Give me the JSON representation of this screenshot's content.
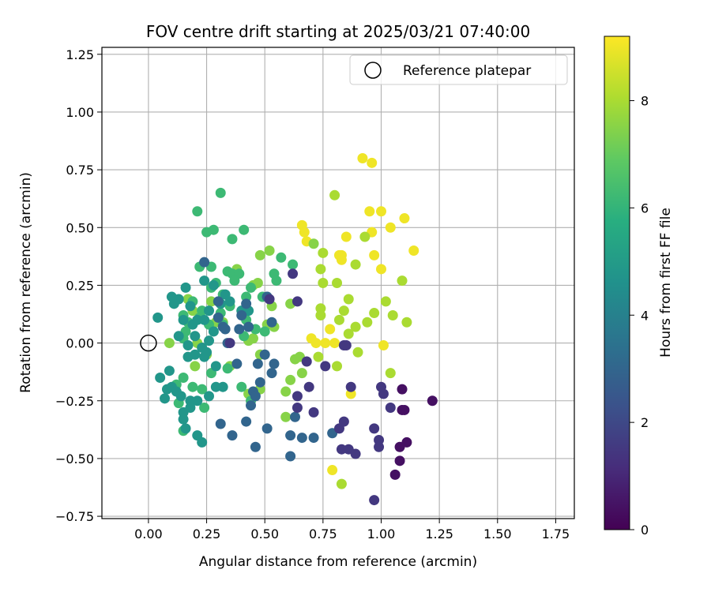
{
  "chart_data": {
    "type": "scatter",
    "title": "FOV centre drift starting at 2025/03/21 07:40:00",
    "xlabel": "Angular distance from reference (arcmin)",
    "ylabel": "Rotation from reference (arcmin)",
    "xlim": [
      -0.2,
      1.83
    ],
    "ylim": [
      -0.76,
      1.28
    ],
    "x_ticks": [
      0.0,
      0.25,
      0.5,
      0.75,
      1.0,
      1.25,
      1.5,
      1.75
    ],
    "x_tick_labels": [
      "0.00",
      "0.25",
      "0.50",
      "0.75",
      "1.00",
      "1.25",
      "1.50",
      "1.75"
    ],
    "y_ticks": [
      -0.75,
      -0.5,
      -0.25,
      0.0,
      0.25,
      0.5,
      0.75,
      1.0,
      1.25
    ],
    "y_tick_labels": [
      "−0.75",
      "−0.50",
      "−0.25",
      "0.00",
      "0.25",
      "0.50",
      "0.75",
      "1.00",
      "1.25"
    ],
    "grid": true,
    "legend": {
      "position": "top-right",
      "entries": [
        "Reference platepar"
      ]
    },
    "reference_point": {
      "x": 0.0,
      "y": 0.0
    },
    "colorbar": {
      "label": "Hours from first FF file",
      "colormap": "viridis",
      "range": [
        0,
        9.2
      ],
      "ticks": [
        0,
        2,
        4,
        6,
        8
      ],
      "tick_labels": [
        "0",
        "2",
        "4",
        "6",
        "8"
      ]
    },
    "points": [
      [
        0.92,
        0.8,
        9.0
      ],
      [
        0.96,
        0.78,
        9.0
      ],
      [
        0.95,
        0.57,
        9.0
      ],
      [
        1.0,
        0.57,
        9.0
      ],
      [
        0.66,
        0.51,
        9.0
      ],
      [
        0.67,
        0.48,
        9.0
      ],
      [
        0.68,
        0.44,
        9.0
      ],
      [
        0.85,
        0.46,
        9.0
      ],
      [
        0.96,
        0.48,
        9.0
      ],
      [
        1.04,
        0.5,
        9.0
      ],
      [
        1.1,
        0.54,
        9.0
      ],
      [
        1.14,
        0.4,
        9.0
      ],
      [
        0.97,
        0.38,
        9.0
      ],
      [
        1.0,
        0.32,
        9.0
      ],
      [
        0.83,
        0.38,
        9.0
      ],
      [
        0.82,
        0.38,
        9.0
      ],
      [
        0.83,
        0.36,
        9.0
      ],
      [
        0.76,
        0.0,
        9.0
      ],
      [
        0.8,
        0.0,
        9.0
      ],
      [
        0.78,
        0.06,
        9.0
      ],
      [
        0.7,
        0.02,
        9.0
      ],
      [
        0.72,
        0.0,
        9.0
      ],
      [
        1.01,
        -0.01,
        9.0
      ],
      [
        0.87,
        -0.22,
        9.0
      ],
      [
        0.79,
        -0.55,
        9.0
      ],
      [
        0.8,
        0.64,
        8.0
      ],
      [
        0.93,
        0.46,
        8.0
      ],
      [
        0.75,
        0.39,
        8.0
      ],
      [
        0.74,
        0.32,
        8.0
      ],
      [
        0.75,
        0.26,
        8.0
      ],
      [
        0.81,
        0.26,
        8.0
      ],
      [
        0.86,
        0.19,
        8.0
      ],
      [
        0.89,
        0.34,
        8.0
      ],
      [
        0.74,
        0.15,
        8.0
      ],
      [
        0.74,
        0.12,
        8.0
      ],
      [
        0.84,
        0.14,
        8.0
      ],
      [
        0.82,
        0.1,
        8.0
      ],
      [
        0.86,
        0.04,
        8.0
      ],
      [
        0.89,
        0.07,
        8.0
      ],
      [
        0.94,
        0.09,
        8.0
      ],
      [
        0.97,
        0.13,
        8.0
      ],
      [
        1.02,
        0.18,
        8.0
      ],
      [
        1.05,
        0.12,
        8.0
      ],
      [
        1.09,
        0.27,
        8.0
      ],
      [
        1.11,
        0.09,
        8.0
      ],
      [
        0.9,
        -0.04,
        8.0
      ],
      [
        0.81,
        -0.1,
        8.0
      ],
      [
        1.04,
        -0.13,
        8.0
      ],
      [
        0.83,
        -0.61,
        8.0
      ],
      [
        0.73,
        -0.06,
        8.0
      ],
      [
        0.59,
        -0.21,
        7.5
      ],
      [
        0.61,
        -0.16,
        7.5
      ],
      [
        0.63,
        -0.07,
        7.5
      ],
      [
        0.65,
        -0.06,
        7.5
      ],
      [
        0.66,
        -0.13,
        7.5
      ],
      [
        0.59,
        -0.32,
        7.5
      ],
      [
        0.48,
        -0.2,
        7.5
      ],
      [
        0.43,
        -0.22,
        7.5
      ],
      [
        0.43,
        0.01,
        7.5
      ],
      [
        0.45,
        0.02,
        7.5
      ],
      [
        0.48,
        -0.05,
        7.5
      ],
      [
        0.51,
        0.08,
        7.5
      ],
      [
        0.53,
        0.16,
        7.5
      ],
      [
        0.54,
        0.07,
        7.5
      ],
      [
        0.47,
        0.26,
        7.5
      ],
      [
        0.45,
        0.25,
        7.5
      ],
      [
        0.48,
        0.38,
        7.5
      ],
      [
        0.52,
        0.4,
        7.5
      ],
      [
        0.71,
        0.43,
        7.5
      ],
      [
        0.61,
        0.17,
        7.5
      ],
      [
        0.38,
        0.32,
        7.5
      ],
      [
        0.35,
        -0.1,
        7.5
      ],
      [
        0.25,
        -0.05,
        7.5
      ],
      [
        0.2,
        -0.1,
        7.5
      ],
      [
        0.21,
        0.0,
        7.5
      ],
      [
        0.17,
        0.19,
        7.5
      ],
      [
        0.09,
        0.0,
        7.5
      ],
      [
        0.19,
        0.14,
        7.5
      ],
      [
        0.27,
        0.18,
        7.5
      ],
      [
        0.29,
        0.09,
        7.5
      ],
      [
        0.32,
        0.09,
        7.5
      ],
      [
        0.21,
        0.57,
        6.2
      ],
      [
        0.28,
        0.49,
        6.2
      ],
      [
        0.31,
        0.65,
        6.2
      ],
      [
        0.41,
        0.49,
        6.2
      ],
      [
        0.36,
        0.45,
        6.2
      ],
      [
        0.25,
        0.48,
        6.2
      ],
      [
        0.22,
        0.33,
        6.2
      ],
      [
        0.27,
        0.33,
        6.2
      ],
      [
        0.34,
        0.31,
        6.2
      ],
      [
        0.36,
        0.3,
        6.2
      ],
      [
        0.39,
        0.3,
        6.2
      ],
      [
        0.44,
        0.24,
        6.2
      ],
      [
        0.54,
        0.3,
        6.2
      ],
      [
        0.57,
        0.37,
        6.2
      ],
      [
        0.62,
        0.34,
        6.2
      ],
      [
        0.55,
        0.27,
        6.2
      ],
      [
        0.49,
        0.2,
        6.2
      ],
      [
        0.27,
        0.24,
        6.2
      ],
      [
        0.19,
        0.18,
        6.2
      ],
      [
        0.23,
        0.14,
        6.2
      ],
      [
        0.15,
        0.12,
        6.2
      ],
      [
        0.22,
        0.11,
        6.2
      ],
      [
        0.26,
        0.08,
        6.2
      ],
      [
        0.31,
        0.13,
        6.2
      ],
      [
        0.32,
        0.08,
        6.2
      ],
      [
        0.42,
        0.1,
        6.2
      ],
      [
        0.46,
        0.06,
        6.2
      ],
      [
        0.5,
        0.05,
        6.2
      ],
      [
        0.41,
        0.03,
        6.2
      ],
      [
        0.12,
        -0.18,
        6.2
      ],
      [
        0.15,
        -0.15,
        6.2
      ],
      [
        0.19,
        -0.19,
        6.2
      ],
      [
        0.23,
        -0.2,
        6.2
      ],
      [
        0.24,
        -0.28,
        6.2
      ],
      [
        0.13,
        -0.26,
        6.2
      ],
      [
        0.15,
        -0.38,
        6.2
      ],
      [
        0.27,
        -0.13,
        6.2
      ],
      [
        0.34,
        -0.11,
        6.2
      ],
      [
        0.4,
        -0.19,
        6.2
      ],
      [
        0.44,
        -0.25,
        6.2
      ],
      [
        0.15,
        0.02,
        6.2
      ],
      [
        0.17,
        0.09,
        6.2
      ],
      [
        0.35,
        0.16,
        6.2
      ],
      [
        0.32,
        0.21,
        6.2
      ],
      [
        0.29,
        0.26,
        6.2
      ],
      [
        0.37,
        0.27,
        6.2
      ],
      [
        0.42,
        0.2,
        6.2
      ],
      [
        0.16,
        0.05,
        6.2
      ],
      [
        0.04,
        0.11,
        4.8
      ],
      [
        0.1,
        0.2,
        4.8
      ],
      [
        0.16,
        0.24,
        4.8
      ],
      [
        0.13,
        0.19,
        4.8
      ],
      [
        0.11,
        0.17,
        4.8
      ],
      [
        0.18,
        0.16,
        4.8
      ],
      [
        0.15,
        0.1,
        4.8
      ],
      [
        0.19,
        0.08,
        4.8
      ],
      [
        0.2,
        0.03,
        4.8
      ],
      [
        0.17,
        -0.01,
        4.8
      ],
      [
        0.23,
        -0.02,
        4.8
      ],
      [
        0.26,
        0.01,
        4.8
      ],
      [
        0.24,
        -0.06,
        4.8
      ],
      [
        0.17,
        -0.06,
        4.8
      ],
      [
        0.09,
        -0.12,
        4.8
      ],
      [
        0.05,
        -0.15,
        4.8
      ],
      [
        0.08,
        -0.2,
        4.8
      ],
      [
        0.1,
        -0.19,
        4.8
      ],
      [
        0.12,
        -0.21,
        4.8
      ],
      [
        0.14,
        -0.23,
        4.8
      ],
      [
        0.18,
        -0.25,
        4.8
      ],
      [
        0.07,
        -0.24,
        4.8
      ],
      [
        0.15,
        -0.3,
        4.8
      ],
      [
        0.18,
        -0.28,
        4.8
      ],
      [
        0.21,
        -0.25,
        4.8
      ],
      [
        0.15,
        -0.33,
        4.8
      ],
      [
        0.16,
        -0.37,
        4.8
      ],
      [
        0.21,
        -0.4,
        4.8
      ],
      [
        0.23,
        -0.43,
        4.8
      ],
      [
        0.26,
        -0.23,
        4.8
      ],
      [
        0.29,
        -0.19,
        4.8
      ],
      [
        0.32,
        -0.19,
        4.8
      ],
      [
        0.29,
        -0.1,
        4.8
      ],
      [
        0.25,
        -0.04,
        4.8
      ],
      [
        0.28,
        0.05,
        4.8
      ],
      [
        0.24,
        0.1,
        4.8
      ],
      [
        0.26,
        0.14,
        4.8
      ],
      [
        0.31,
        0.17,
        4.8
      ],
      [
        0.33,
        0.21,
        4.8
      ],
      [
        0.35,
        0.18,
        4.8
      ],
      [
        0.4,
        0.14,
        4.8
      ],
      [
        0.43,
        0.14,
        4.8
      ],
      [
        0.24,
        0.27,
        4.8
      ],
      [
        0.28,
        0.25,
        4.8
      ],
      [
        0.21,
        0.1,
        4.8
      ],
      [
        0.13,
        0.03,
        4.8
      ],
      [
        0.2,
        -0.05,
        4.8
      ],
      [
        0.24,
        0.35,
        3.0
      ],
      [
        0.3,
        0.18,
        3.0
      ],
      [
        0.3,
        0.11,
        3.0
      ],
      [
        0.32,
        0.07,
        3.0
      ],
      [
        0.33,
        0.06,
        3.0
      ],
      [
        0.39,
        0.06,
        3.0
      ],
      [
        0.43,
        0.07,
        3.0
      ],
      [
        0.38,
        -0.09,
        3.0
      ],
      [
        0.47,
        -0.09,
        3.0
      ],
      [
        0.5,
        -0.05,
        3.0
      ],
      [
        0.54,
        -0.09,
        3.0
      ],
      [
        0.53,
        -0.13,
        3.0
      ],
      [
        0.48,
        -0.17,
        3.0
      ],
      [
        0.45,
        -0.21,
        3.0
      ],
      [
        0.44,
        -0.27,
        3.0
      ],
      [
        0.46,
        -0.23,
        3.0
      ],
      [
        0.31,
        -0.35,
        3.0
      ],
      [
        0.36,
        -0.4,
        3.0
      ],
      [
        0.42,
        -0.34,
        3.0
      ],
      [
        0.46,
        -0.45,
        3.0
      ],
      [
        0.51,
        -0.37,
        3.0
      ],
      [
        0.61,
        -0.4,
        3.0
      ],
      [
        0.66,
        -0.41,
        3.0
      ],
      [
        0.61,
        -0.49,
        3.0
      ],
      [
        0.71,
        -0.41,
        3.0
      ],
      [
        0.79,
        -0.39,
        3.0
      ],
      [
        0.63,
        -0.32,
        3.0
      ],
      [
        0.34,
        0.0,
        3.0
      ],
      [
        0.4,
        0.12,
        3.0
      ],
      [
        0.42,
        0.17,
        3.0
      ],
      [
        0.51,
        0.2,
        3.0
      ],
      [
        0.53,
        0.09,
        3.0
      ],
      [
        0.51,
        0.2,
        3.0
      ],
      [
        0.64,
        0.18,
        1.5
      ],
      [
        0.62,
        0.3,
        1.5
      ],
      [
        0.52,
        0.19,
        1.5
      ],
      [
        0.35,
        0.0,
        1.5
      ],
      [
        0.68,
        -0.08,
        1.5
      ],
      [
        0.64,
        -0.23,
        1.5
      ],
      [
        0.69,
        -0.19,
        1.5
      ],
      [
        0.71,
        -0.3,
        1.5
      ],
      [
        0.64,
        -0.28,
        1.5
      ],
      [
        0.82,
        -0.37,
        1.5
      ],
      [
        0.84,
        -0.34,
        1.5
      ],
      [
        0.83,
        -0.46,
        1.5
      ],
      [
        0.86,
        -0.46,
        1.5
      ],
      [
        0.89,
        -0.48,
        1.5
      ],
      [
        0.97,
        -0.37,
        1.5
      ],
      [
        0.99,
        -0.42,
        1.5
      ],
      [
        0.99,
        -0.45,
        1.5
      ],
      [
        0.97,
        -0.68,
        1.5
      ],
      [
        1.01,
        -0.22,
        1.5
      ],
      [
        1.0,
        -0.19,
        1.5
      ],
      [
        0.87,
        -0.19,
        1.5
      ],
      [
        0.84,
        -0.01,
        1.5
      ],
      [
        0.85,
        -0.01,
        1.5
      ],
      [
        0.76,
        -0.1,
        1.5
      ],
      [
        1.04,
        -0.28,
        1.5
      ],
      [
        1.09,
        -0.2,
        0.4
      ],
      [
        1.1,
        -0.29,
        0.4
      ],
      [
        1.09,
        -0.29,
        0.4
      ],
      [
        1.22,
        -0.25,
        0.4
      ],
      [
        1.11,
        -0.43,
        0.4
      ],
      [
        1.08,
        -0.45,
        0.4
      ],
      [
        1.08,
        -0.51,
        0.4
      ],
      [
        1.06,
        -0.57,
        0.4
      ]
    ]
  }
}
